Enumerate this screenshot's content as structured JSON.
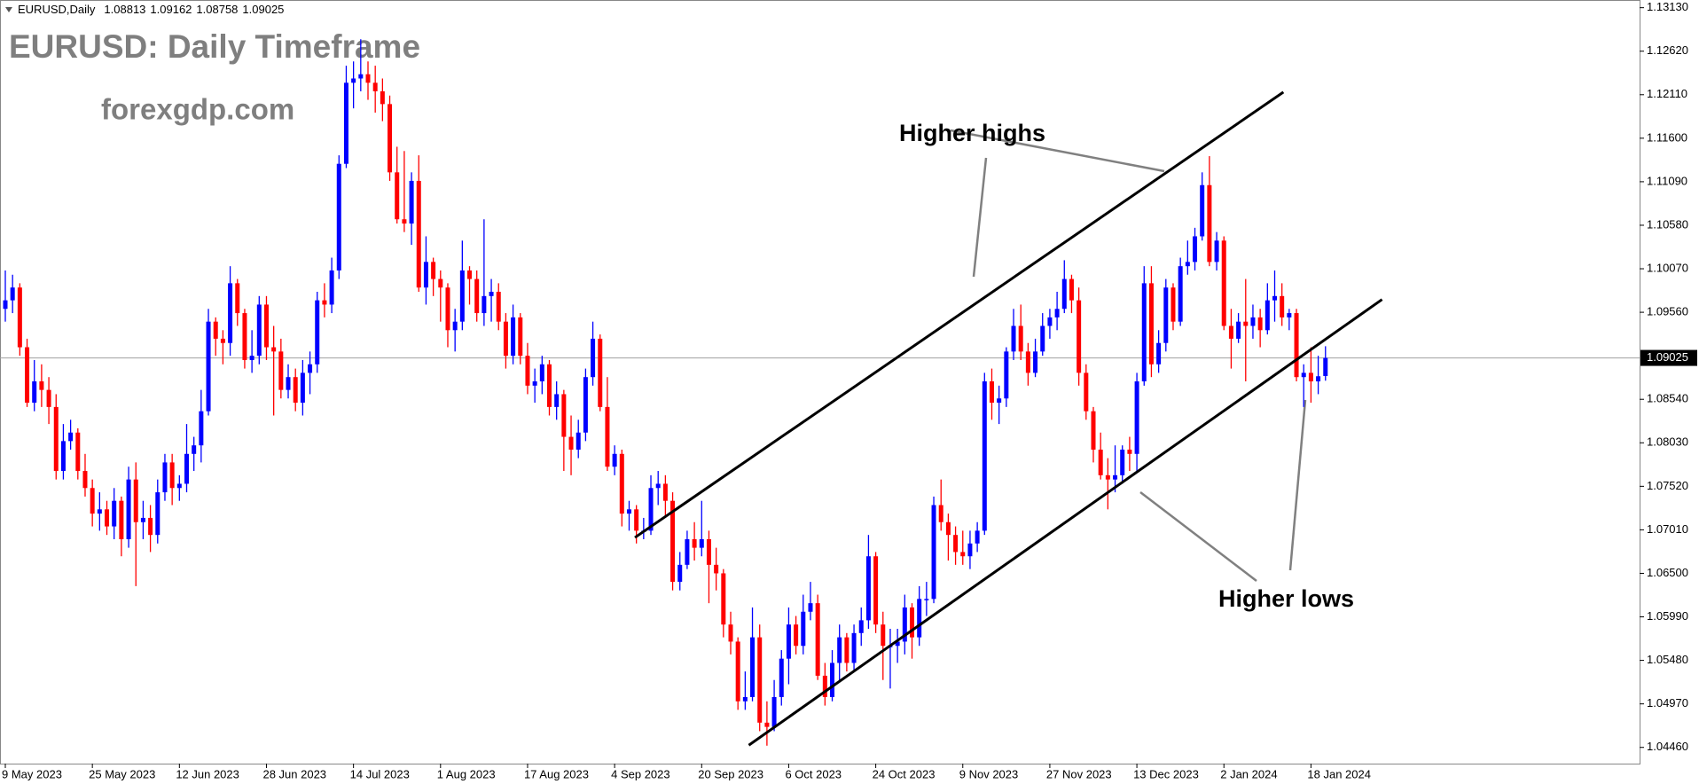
{
  "chart_data": {
    "type": "candlestick",
    "symbol": "EURUSD,Daily",
    "ohlc_header": [
      {
        "value": 1.08813,
        "label": "1.08813"
      },
      {
        "value": 1.09162,
        "label": "1.09162"
      },
      {
        "value": 1.08758,
        "label": "1.08758"
      },
      {
        "value": 1.09025,
        "label": "1.09025"
      }
    ],
    "title": "EURUSD: Daily Timeframe",
    "subtitle": "forexgdp.com",
    "annotations": [
      "Higher highs",
      "Higher lows"
    ],
    "up_color": "#0000ff",
    "down_color": "#ff0000",
    "categories": [
      "9 May 2023",
      null,
      null,
      null,
      null,
      null,
      null,
      null,
      null,
      null,
      null,
      null,
      "25 May 2023",
      null,
      null,
      null,
      null,
      null,
      null,
      null,
      null,
      null,
      null,
      null,
      "12 Jun 2023",
      null,
      null,
      null,
      null,
      null,
      null,
      null,
      null,
      null,
      null,
      null,
      "28 Jun 2023",
      null,
      null,
      null,
      null,
      null,
      null,
      null,
      null,
      null,
      null,
      null,
      "14 Jul 2023",
      null,
      null,
      null,
      null,
      null,
      null,
      null,
      null,
      null,
      null,
      null,
      "1 Aug 2023",
      null,
      null,
      null,
      null,
      null,
      null,
      null,
      null,
      null,
      null,
      null,
      "17 Aug 2023",
      null,
      null,
      null,
      null,
      null,
      null,
      null,
      null,
      null,
      null,
      null,
      "4 Sep 2023",
      null,
      null,
      null,
      null,
      null,
      null,
      null,
      null,
      null,
      null,
      null,
      "20 Sep 2023",
      null,
      null,
      null,
      null,
      null,
      null,
      null,
      null,
      null,
      null,
      null,
      "6 Oct 2023",
      null,
      null,
      null,
      null,
      null,
      null,
      null,
      null,
      null,
      null,
      null,
      "24 Oct 2023",
      null,
      null,
      null,
      null,
      null,
      null,
      null,
      null,
      null,
      null,
      null,
      "9 Nov 2023",
      null,
      null,
      null,
      null,
      null,
      null,
      null,
      null,
      null,
      null,
      null,
      "27 Nov 2023",
      null,
      null,
      null,
      null,
      null,
      null,
      null,
      null,
      null,
      null,
      null,
      "13 Dec 2023",
      null,
      null,
      null,
      null,
      null,
      null,
      null,
      null,
      null,
      null,
      null,
      "2 Jan 2024",
      null,
      null,
      null,
      null,
      null,
      null,
      null,
      null,
      null,
      null,
      null,
      "18 Jan 2024",
      null,
      null
    ],
    "candles": [
      [
        1.096,
        1.1005,
        1.0945,
        1.097
      ],
      [
        1.097,
        1.1,
        1.0955,
        1.0985
      ],
      [
        1.0985,
        1.099,
        1.0905,
        1.0915
      ],
      [
        1.0915,
        1.0925,
        1.0845,
        1.085
      ],
      [
        1.085,
        1.09,
        1.084,
        1.0875
      ],
      [
        1.0875,
        1.0895,
        1.0845,
        1.0865
      ],
      [
        1.0865,
        1.088,
        1.0825,
        1.0845
      ],
      [
        1.0845,
        1.086,
        1.076,
        1.077
      ],
      [
        1.077,
        1.0825,
        1.076,
        1.0805
      ],
      [
        1.0805,
        1.083,
        1.0795,
        1.0815
      ],
      [
        1.0815,
        1.082,
        1.076,
        1.077
      ],
      [
        1.077,
        1.079,
        1.074,
        1.075
      ],
      [
        1.075,
        1.076,
        1.0705,
        1.072
      ],
      [
        1.072,
        1.0745,
        1.07,
        1.0725
      ],
      [
        1.0725,
        1.0735,
        1.0695,
        1.0705
      ],
      [
        1.0705,
        1.075,
        1.069,
        1.0735
      ],
      [
        1.0735,
        1.074,
        1.067,
        1.069
      ],
      [
        1.069,
        1.0775,
        1.068,
        1.076
      ],
      [
        1.076,
        1.078,
        1.0635,
        1.071
      ],
      [
        1.071,
        1.0735,
        1.069,
        1.0715
      ],
      [
        1.0715,
        1.073,
        1.0675,
        1.0695
      ],
      [
        1.0695,
        1.076,
        1.0685,
        1.0745
      ],
      [
        1.0745,
        1.079,
        1.0735,
        1.078
      ],
      [
        1.078,
        1.079,
        1.073,
        1.075
      ],
      [
        1.075,
        1.0765,
        1.0735,
        1.0755
      ],
      [
        1.0755,
        1.0825,
        1.0745,
        1.079
      ],
      [
        1.079,
        1.081,
        1.077,
        1.08
      ],
      [
        1.08,
        1.0865,
        1.078,
        1.084
      ],
      [
        1.084,
        1.096,
        1.0835,
        1.0945
      ],
      [
        1.0945,
        1.095,
        1.0905,
        1.0925
      ],
      [
        1.0925,
        1.0935,
        1.0895,
        1.092
      ],
      [
        1.092,
        1.101,
        1.0905,
        1.099
      ],
      [
        1.099,
        1.0995,
        1.094,
        1.0955
      ],
      [
        1.0955,
        1.096,
        1.089,
        1.09
      ],
      [
        1.09,
        1.0935,
        1.0885,
        1.0905
      ],
      [
        1.0905,
        1.0975,
        1.0895,
        1.0965
      ],
      [
        1.0965,
        1.0975,
        1.09,
        1.0915
      ],
      [
        1.0915,
        1.094,
        1.0835,
        1.091
      ],
      [
        1.091,
        1.0925,
        1.0855,
        1.0865
      ],
      [
        1.0865,
        1.0895,
        1.0855,
        1.088
      ],
      [
        1.088,
        1.089,
        1.084,
        1.085
      ],
      [
        1.085,
        1.09,
        1.0835,
        1.0885
      ],
      [
        1.0885,
        1.091,
        1.086,
        1.0895
      ],
      [
        1.0895,
        1.098,
        1.0885,
        1.097
      ],
      [
        1.097,
        1.099,
        1.095,
        1.0965
      ],
      [
        1.0965,
        1.102,
        1.0955,
        1.1005
      ],
      [
        1.1005,
        1.114,
        1.0995,
        1.113
      ],
      [
        1.113,
        1.1245,
        1.1125,
        1.1225
      ],
      [
        1.1225,
        1.125,
        1.1195,
        1.123
      ],
      [
        1.123,
        1.1276,
        1.1215,
        1.1235
      ],
      [
        1.1235,
        1.125,
        1.1205,
        1.1225
      ],
      [
        1.1225,
        1.1245,
        1.119,
        1.1215
      ],
      [
        1.1215,
        1.123,
        1.118,
        1.12
      ],
      [
        1.12,
        1.121,
        1.111,
        1.112
      ],
      [
        1.112,
        1.115,
        1.106,
        1.1065
      ],
      [
        1.1065,
        1.1145,
        1.105,
        1.106
      ],
      [
        1.106,
        1.112,
        1.1035,
        1.111
      ],
      [
        1.111,
        1.114,
        1.098,
        1.0985
      ],
      [
        1.0985,
        1.1045,
        1.0965,
        1.1015
      ],
      [
        1.1015,
        1.102,
        1.0975,
        1.0995
      ],
      [
        1.0995,
        1.1005,
        1.0945,
        1.0985
      ],
      [
        1.0985,
        1.099,
        1.0915,
        1.0935
      ],
      [
        1.0935,
        1.096,
        1.091,
        1.0945
      ],
      [
        1.0945,
        1.104,
        1.0935,
        1.1005
      ],
      [
        1.1005,
        1.101,
        1.0965,
        1.0995
      ],
      [
        1.0995,
        1.1005,
        1.0945,
        1.0955
      ],
      [
        1.0955,
        1.1065,
        1.094,
        1.0975
      ],
      [
        1.0975,
        1.0995,
        1.0945,
        1.098
      ],
      [
        1.098,
        1.099,
        1.0935,
        1.0945
      ],
      [
        1.0945,
        1.0955,
        1.089,
        1.0905
      ],
      [
        1.0905,
        1.0965,
        1.0895,
        1.095
      ],
      [
        1.095,
        1.0955,
        1.0895,
        1.0905
      ],
      [
        1.0905,
        1.092,
        1.086,
        1.087
      ],
      [
        1.087,
        1.089,
        1.085,
        1.0875
      ],
      [
        1.0875,
        1.0905,
        1.086,
        1.0895
      ],
      [
        1.0895,
        1.09,
        1.0835,
        1.0845
      ],
      [
        1.0845,
        1.0875,
        1.083,
        1.086
      ],
      [
        1.086,
        1.0865,
        1.077,
        1.081
      ],
      [
        1.081,
        1.0835,
        1.0765,
        1.0795
      ],
      [
        1.0795,
        1.083,
        1.0785,
        1.0815
      ],
      [
        1.0815,
        1.089,
        1.0805,
        1.088
      ],
      [
        1.088,
        1.0945,
        1.087,
        1.0925
      ],
      [
        1.0925,
        1.093,
        1.084,
        1.0845
      ],
      [
        1.0845,
        1.088,
        1.077,
        1.0775
      ],
      [
        1.0775,
        1.08,
        1.0765,
        1.079
      ],
      [
        1.079,
        1.0795,
        1.0705,
        1.072
      ],
      [
        1.072,
        1.0735,
        1.07,
        1.0725
      ],
      [
        1.0725,
        1.073,
        1.0685,
        1.07
      ],
      [
        1.07,
        1.0715,
        1.069,
        1.07
      ],
      [
        1.07,
        1.0765,
        1.0695,
        1.075
      ],
      [
        1.075,
        1.077,
        1.073,
        1.0755
      ],
      [
        1.0755,
        1.0765,
        1.0715,
        1.0735
      ],
      [
        1.0735,
        1.0745,
        1.063,
        1.064
      ],
      [
        1.064,
        1.0675,
        1.063,
        1.066
      ],
      [
        1.066,
        1.07,
        1.0655,
        1.069
      ],
      [
        1.069,
        1.071,
        1.0665,
        1.068
      ],
      [
        1.068,
        1.0735,
        1.067,
        1.069
      ],
      [
        1.069,
        1.07,
        1.0615,
        1.066
      ],
      [
        1.066,
        1.068,
        1.063,
        1.065
      ],
      [
        1.065,
        1.0655,
        1.0575,
        1.059
      ],
      [
        1.059,
        1.0605,
        1.0555,
        1.057
      ],
      [
        1.057,
        1.0575,
        1.049,
        1.05
      ],
      [
        1.05,
        1.0535,
        1.049,
        1.0505
      ],
      [
        1.0505,
        1.061,
        1.05,
        1.0575
      ],
      [
        1.0575,
        1.059,
        1.0465,
        1.0475
      ],
      [
        1.0475,
        1.05,
        1.0448,
        1.047
      ],
      [
        1.047,
        1.0525,
        1.0465,
        1.0505
      ],
      [
        1.0505,
        1.056,
        1.0495,
        1.055
      ],
      [
        1.055,
        1.061,
        1.052,
        1.059
      ],
      [
        1.059,
        1.06,
        1.0555,
        1.0565
      ],
      [
        1.0565,
        1.0625,
        1.0555,
        1.0605
      ],
      [
        1.0605,
        1.064,
        1.0595,
        1.0615
      ],
      [
        1.0615,
        1.0625,
        1.0525,
        1.053
      ],
      [
        1.053,
        1.0545,
        1.0495,
        1.0505
      ],
      [
        1.0505,
        1.056,
        1.05,
        1.0545
      ],
      [
        1.0545,
        1.059,
        1.0525,
        1.0575
      ],
      [
        1.0575,
        1.058,
        1.0535,
        1.0545
      ],
      [
        1.0545,
        1.059,
        1.0535,
        1.058
      ],
      [
        1.058,
        1.061,
        1.0565,
        1.0595
      ],
      [
        1.0595,
        1.0695,
        1.0585,
        1.067
      ],
      [
        1.067,
        1.0675,
        1.058,
        1.059
      ],
      [
        1.059,
        1.0605,
        1.0525,
        1.0565
      ],
      [
        1.0565,
        1.0585,
        1.0515,
        1.0565
      ],
      [
        1.0565,
        1.0585,
        1.0545,
        1.057
      ],
      [
        1.057,
        1.0625,
        1.0555,
        1.061
      ],
      [
        1.061,
        1.0615,
        1.055,
        1.0575
      ],
      [
        1.0575,
        1.0635,
        1.0565,
        1.062
      ],
      [
        1.062,
        1.064,
        1.06,
        1.062
      ],
      [
        1.062,
        1.074,
        1.0615,
        1.073
      ],
      [
        1.073,
        1.076,
        1.07,
        1.071
      ],
      [
        1.071,
        1.072,
        1.0665,
        1.0695
      ],
      [
        1.0695,
        1.0705,
        1.066,
        1.0675
      ],
      [
        1.0675,
        1.07,
        1.066,
        1.067
      ],
      [
        1.067,
        1.07,
        1.0655,
        1.0685
      ],
      [
        1.0685,
        1.071,
        1.0675,
        1.07
      ],
      [
        1.07,
        1.0885,
        1.0695,
        1.0875
      ],
      [
        1.0875,
        1.089,
        1.083,
        1.085
      ],
      [
        1.085,
        1.087,
        1.0825,
        1.0855
      ],
      [
        1.0855,
        1.0915,
        1.0845,
        1.091
      ],
      [
        1.091,
        1.096,
        1.09,
        1.094
      ],
      [
        1.094,
        1.0965,
        1.09,
        1.091
      ],
      [
        1.091,
        1.092,
        1.087,
        1.0885
      ],
      [
        1.0885,
        1.0925,
        1.088,
        1.091
      ],
      [
        1.091,
        1.0955,
        1.0905,
        1.094
      ],
      [
        1.094,
        1.096,
        1.0925,
        1.095
      ],
      [
        1.095,
        1.098,
        1.0935,
        1.096
      ],
      [
        1.096,
        1.1017,
        1.0955,
        1.0995
      ],
      [
        1.0995,
        1.1,
        1.0955,
        1.097
      ],
      [
        1.097,
        1.0985,
        1.087,
        1.0885
      ],
      [
        1.0885,
        1.0895,
        1.083,
        1.084
      ],
      [
        1.084,
        1.0845,
        1.078,
        1.0795
      ],
      [
        1.0795,
        1.0815,
        1.076,
        1.0765
      ],
      [
        1.0765,
        1.0785,
        1.0725,
        1.076
      ],
      [
        1.076,
        1.08,
        1.0745,
        1.0765
      ],
      [
        1.0765,
        1.08,
        1.0755,
        1.0795
      ],
      [
        1.0795,
        1.081,
        1.077,
        1.079
      ],
      [
        1.079,
        1.0885,
        1.077,
        1.0875
      ],
      [
        1.0875,
        1.101,
        1.087,
        1.099
      ],
      [
        1.099,
        1.101,
        1.088,
        1.0895
      ],
      [
        1.0895,
        1.0935,
        1.0885,
        1.092
      ],
      [
        1.092,
        1.0995,
        1.091,
        1.0985
      ],
      [
        1.0985,
        1.099,
        1.0935,
        1.0945
      ],
      [
        1.0945,
        1.102,
        1.094,
        1.101
      ],
      [
        1.101,
        1.104,
        1.1,
        1.1015
      ],
      [
        1.1015,
        1.1055,
        1.1005,
        1.1045
      ],
      [
        1.1045,
        1.112,
        1.104,
        1.1105
      ],
      [
        1.1105,
        1.1139,
        1.101,
        1.1015
      ],
      [
        1.1015,
        1.105,
        1.1005,
        1.104
      ],
      [
        1.104,
        1.1045,
        1.0935,
        1.094
      ],
      [
        1.094,
        1.096,
        1.089,
        1.0925
      ],
      [
        1.0925,
        1.0955,
        1.092,
        1.0945
      ],
      [
        1.0945,
        1.0995,
        1.0875,
        1.094
      ],
      [
        1.094,
        1.0965,
        1.0925,
        1.095
      ],
      [
        1.095,
        1.096,
        1.0915,
        1.0935
      ],
      [
        1.0935,
        1.099,
        1.093,
        1.097
      ],
      [
        1.097,
        1.1005,
        1.0945,
        1.0975
      ],
      [
        1.0975,
        1.099,
        1.094,
        1.095
      ],
      [
        1.095,
        1.096,
        1.0935,
        1.0955
      ],
      [
        1.0955,
        1.096,
        1.0875,
        1.088
      ],
      [
        1.088,
        1.0895,
        1.0845,
        1.0885
      ],
      [
        1.0885,
        1.0915,
        1.085,
        1.0875
      ],
      [
        1.0875,
        1.0905,
        1.086,
        1.0881
      ],
      [
        1.08813,
        1.09162,
        1.08758,
        1.09025
      ]
    ],
    "last_price": {
      "value": 1.09025,
      "label": "1.09025"
    },
    "trendlines": [
      {
        "x": [
          86.8,
          176.2
        ],
        "y": [
          1.0692,
          1.1214
        ]
      },
      {
        "x": [
          102.5,
          189.8
        ],
        "y": [
          1.04486,
          1.0971
        ]
      }
    ],
    "ylim": [
      1.0427,
      1.1322
    ],
    "yticks": [
      {
        "value": 1.1313,
        "label": "1.13130"
      },
      {
        "value": 1.1262,
        "label": "1.12620"
      },
      {
        "value": 1.1211,
        "label": "1.12110"
      },
      {
        "value": 1.116,
        "label": "1.11600"
      },
      {
        "value": 1.1109,
        "label": "1.11090"
      },
      {
        "value": 1.1058,
        "label": "1.10580"
      },
      {
        "value": 1.1007,
        "label": "1.10070"
      },
      {
        "value": 1.0956,
        "label": "1.09560"
      },
      {
        "value": 1.0854,
        "label": "1.08540"
      },
      {
        "value": 1.0803,
        "label": "1.08030"
      },
      {
        "value": 1.0752,
        "label": "1.07520"
      },
      {
        "value": 1.0701,
        "label": "1.07010"
      },
      {
        "value": 1.065,
        "label": "1.06500"
      },
      {
        "value": 1.0599,
        "label": "1.05990"
      },
      {
        "value": 1.0548,
        "label": "1.05480"
      },
      {
        "value": 1.0497,
        "label": "1.04970"
      },
      {
        "value": 1.0446,
        "label": "1.04460"
      }
    ],
    "grid": false
  }
}
